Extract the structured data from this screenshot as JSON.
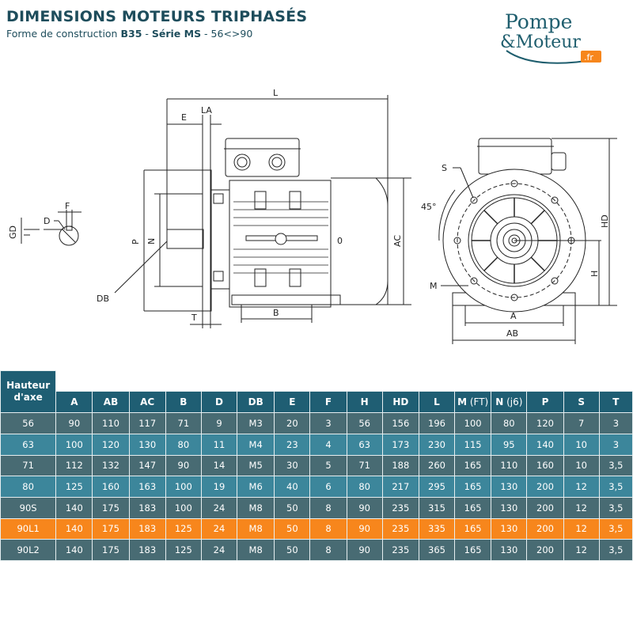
{
  "header": {
    "title": "DIMENSIONS MOTEURS TRIPHASÉS",
    "subtitle_prefix": "Forme de construction ",
    "subtitle_form": "B35",
    "subtitle_sep": " - ",
    "subtitle_series": "Série MS",
    "subtitle_range": " - 56<>90"
  },
  "logo": {
    "line1": "Pompe",
    "line2": "&Moteur",
    "tld": ".fr",
    "colors": {
      "text": "#1f5e6e",
      "accent": "#f7861c"
    }
  },
  "drawing_labels": {
    "L": "L",
    "E": "E",
    "LA": "LA",
    "P": "P",
    "N": "N",
    "DB": "DB",
    "T": "T",
    "B": "B",
    "AC": "AC",
    "zero": "0",
    "F": "F",
    "D": "D",
    "GD": "GD",
    "S": "S",
    "angle": "45°",
    "HD": "HD",
    "H": "H",
    "M": "M",
    "A": "A",
    "AB": "AB"
  },
  "table": {
    "header_first_line1": "Hauteur",
    "header_first_line2": "d'axe",
    "columns": [
      {
        "main": "A",
        "sub": ""
      },
      {
        "main": "AB",
        "sub": ""
      },
      {
        "main": "AC",
        "sub": ""
      },
      {
        "main": "B",
        "sub": ""
      },
      {
        "main": "D",
        "sub": ""
      },
      {
        "main": "DB",
        "sub": ""
      },
      {
        "main": "E",
        "sub": ""
      },
      {
        "main": "F",
        "sub": ""
      },
      {
        "main": "H",
        "sub": ""
      },
      {
        "main": "HD",
        "sub": ""
      },
      {
        "main": "L",
        "sub": ""
      },
      {
        "main": "M",
        "sub": " (FT)"
      },
      {
        "main": "N",
        "sub": " (j6)"
      },
      {
        "main": "P",
        "sub": ""
      },
      {
        "main": "S",
        "sub": ""
      },
      {
        "main": "T",
        "sub": ""
      }
    ],
    "row_colors": {
      "dark": "#486b73",
      "light": "#3c869b",
      "highlight": "#f7861c",
      "header": "#1f5e73"
    },
    "highlighted_row": "90L1",
    "rows": [
      [
        "56",
        "90",
        "110",
        "117",
        "71",
        "9",
        "M3",
        "20",
        "3",
        "56",
        "156",
        "196",
        "100",
        "80",
        "120",
        "7",
        "3"
      ],
      [
        "63",
        "100",
        "120",
        "130",
        "80",
        "11",
        "M4",
        "23",
        "4",
        "63",
        "173",
        "230",
        "115",
        "95",
        "140",
        "10",
        "3"
      ],
      [
        "71",
        "112",
        "132",
        "147",
        "90",
        "14",
        "M5",
        "30",
        "5",
        "71",
        "188",
        "260",
        "165",
        "110",
        "160",
        "10",
        "3,5"
      ],
      [
        "80",
        "125",
        "160",
        "163",
        "100",
        "19",
        "M6",
        "40",
        "6",
        "80",
        "217",
        "295",
        "165",
        "130",
        "200",
        "12",
        "3,5"
      ],
      [
        "90S",
        "140",
        "175",
        "183",
        "100",
        "24",
        "M8",
        "50",
        "8",
        "90",
        "235",
        "315",
        "165",
        "130",
        "200",
        "12",
        "3,5"
      ],
      [
        "90L1",
        "140",
        "175",
        "183",
        "125",
        "24",
        "M8",
        "50",
        "8",
        "90",
        "235",
        "335",
        "165",
        "130",
        "200",
        "12",
        "3,5"
      ],
      [
        "90L2",
        "140",
        "175",
        "183",
        "125",
        "24",
        "M8",
        "50",
        "8",
        "90",
        "235",
        "365",
        "165",
        "130",
        "200",
        "12",
        "3,5"
      ]
    ]
  }
}
